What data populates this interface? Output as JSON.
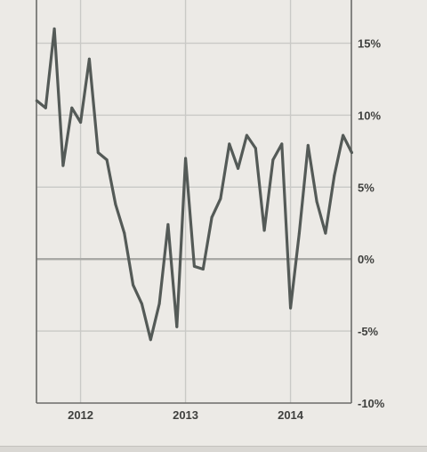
{
  "chart_data": {
    "type": "line",
    "title": "",
    "xlabel": "",
    "ylabel": "",
    "y_unit": "%",
    "xlim": [
      2011.58,
      2014.58
    ],
    "ylim": [
      -10,
      18
    ],
    "x_ticks": [
      2012,
      2013,
      2014
    ],
    "x_tick_labels": [
      "2012",
      "2013",
      "2014"
    ],
    "y_ticks": [
      15,
      10,
      5,
      0,
      -5,
      -10
    ],
    "y_tick_labels": [
      "15%",
      "10%",
      "5%",
      "0%",
      "-5%",
      "-10%"
    ],
    "y_axis_side": "right",
    "grid": true,
    "legend": "none",
    "colors": {
      "line": "#545a57",
      "background": "#eceae6",
      "grid": "#c9c9c6",
      "zero_line": "#a8a8a5",
      "axis": "#6b6b68",
      "text": "#3f403e"
    },
    "series": [
      {
        "x": [
          2011.583,
          2011.667,
          2011.75,
          2011.833,
          2011.917,
          2012.0,
          2012.083,
          2012.167,
          2012.25,
          2012.333,
          2012.417,
          2012.5,
          2012.583,
          2012.667,
          2012.75,
          2012.833,
          2012.917,
          2013.0,
          2013.083,
          2013.167,
          2013.25,
          2013.333,
          2013.417,
          2013.5,
          2013.583,
          2013.667,
          2013.75,
          2013.833,
          2013.917,
          2014.0,
          2014.083,
          2014.167,
          2014.25,
          2014.333,
          2014.417,
          2014.5,
          2014.583
        ],
        "values": [
          11.0,
          10.5,
          16.0,
          6.5,
          10.5,
          9.5,
          13.9,
          7.4,
          6.9,
          3.8,
          1.8,
          -1.8,
          -3.1,
          -5.6,
          -3.1,
          2.4,
          -4.7,
          7.0,
          -0.5,
          -0.7,
          2.9,
          4.2,
          8.0,
          6.3,
          8.6,
          7.7,
          2.0,
          6.9,
          8.0,
          -3.4,
          1.8,
          7.9,
          4.0,
          1.8,
          5.8,
          8.6,
          7.4
        ]
      }
    ]
  }
}
